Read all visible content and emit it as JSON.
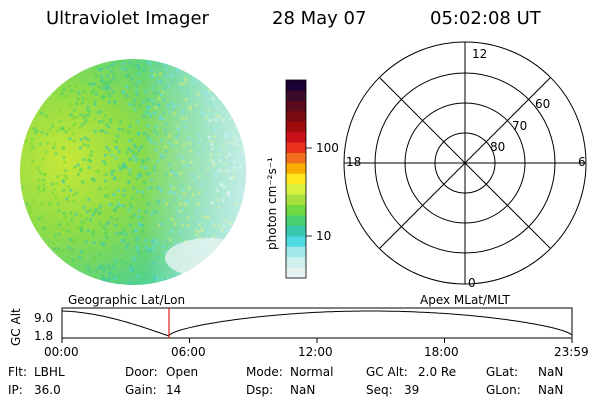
{
  "header": {
    "instrument": "Ultraviolet Imager",
    "date": "28 May 07",
    "time": "05:02:08 UT"
  },
  "colorbar": {
    "label": "photon cm⁻²s⁻¹",
    "tick_100": "100",
    "tick_10": "10",
    "colors_top_to_bottom": [
      "#1a0033",
      "#3a0a2a",
      "#5a0a1a",
      "#7a0a12",
      "#a00a0a",
      "#c8101a",
      "#e8301a",
      "#f07020",
      "#f8b000",
      "#ffe820",
      "#d8f040",
      "#a8e040",
      "#70d840",
      "#48d070",
      "#38c8b0",
      "#50d8e0",
      "#a0e8e8",
      "#d0f0f0",
      "#e8f4f4"
    ]
  },
  "polar_plot": {
    "label_top": "12",
    "label_left": "18",
    "label_right": "6",
    "label_bottom": "0",
    "ring_60": "60",
    "ring_70": "70",
    "ring_80": "80"
  },
  "timeline": {
    "label_left": "Geographic Lat/Lon",
    "label_right": "Apex MLat/MLT",
    "axis_title": "GC Alt",
    "y_top": "9.0",
    "y_bottom": "1.8",
    "x_ticks": [
      "00:00",
      "06:00",
      "12:00",
      "18:00",
      "23:59"
    ],
    "marker_time": "05:02"
  },
  "info": {
    "flt_label": "Flt:",
    "flt_value": "LBHL",
    "ip_label": "IP:",
    "ip_value": "36.0",
    "door_label": "Door:",
    "door_value": "Open",
    "gain_label": "Gain:",
    "gain_value": "14",
    "mode_label": "Mode:",
    "mode_value": "Normal",
    "dsp_label": "Dsp:",
    "dsp_value": "NaN",
    "gcalt_label": "GC Alt:",
    "gcalt_value": "2.0 Re",
    "seq_label": "Seq:",
    "seq_value": "39",
    "glat_label": "GLat:",
    "glat_value": "NaN",
    "glon_label": "GLon:",
    "glon_value": "NaN"
  }
}
